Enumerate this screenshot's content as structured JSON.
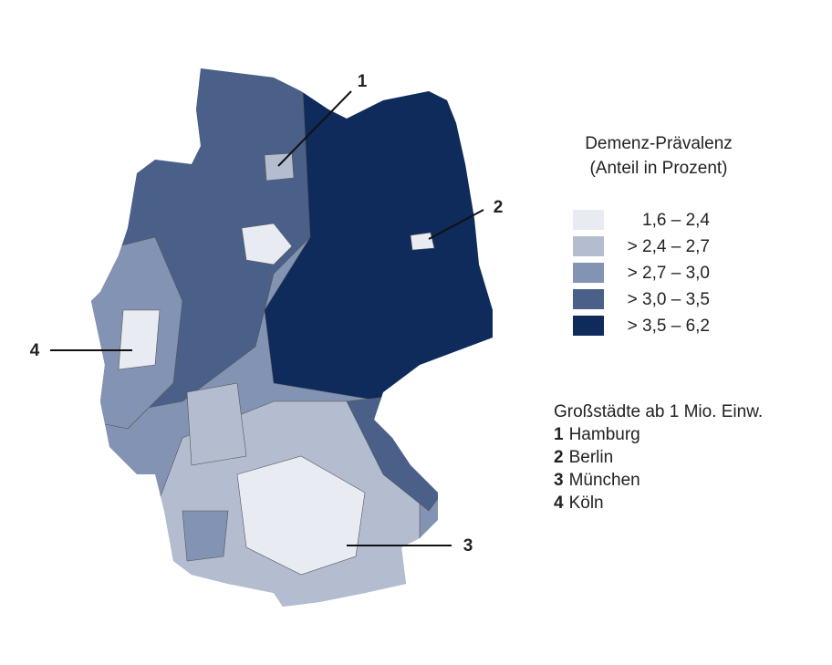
{
  "legend": {
    "title": [
      "Demenz-Prävalenz",
      "(Anteil in Prozent)"
    ],
    "items": [
      {
        "label": "1,6 – 2,4",
        "color": "#e9ebf3"
      },
      {
        "label": "> 2,4 – 2,7",
        "color": "#b4bdd0"
      },
      {
        "label": "> 2,7 – 3,0",
        "color": "#8393b3"
      },
      {
        "label": "> 3,0 – 3,5",
        "color": "#4a6089"
      },
      {
        "label": "> 3,5 – 6,2",
        "color": "#0f2b5c"
      }
    ]
  },
  "cities": {
    "title": "Großstädte ab 1 Mio. Einw.",
    "items": [
      {
        "number": "1",
        "name": "Hamburg"
      },
      {
        "number": "2",
        "name": "Berlin"
      },
      {
        "number": "3",
        "name": "München"
      },
      {
        "number": "4",
        "name": "Köln"
      }
    ]
  }
}
